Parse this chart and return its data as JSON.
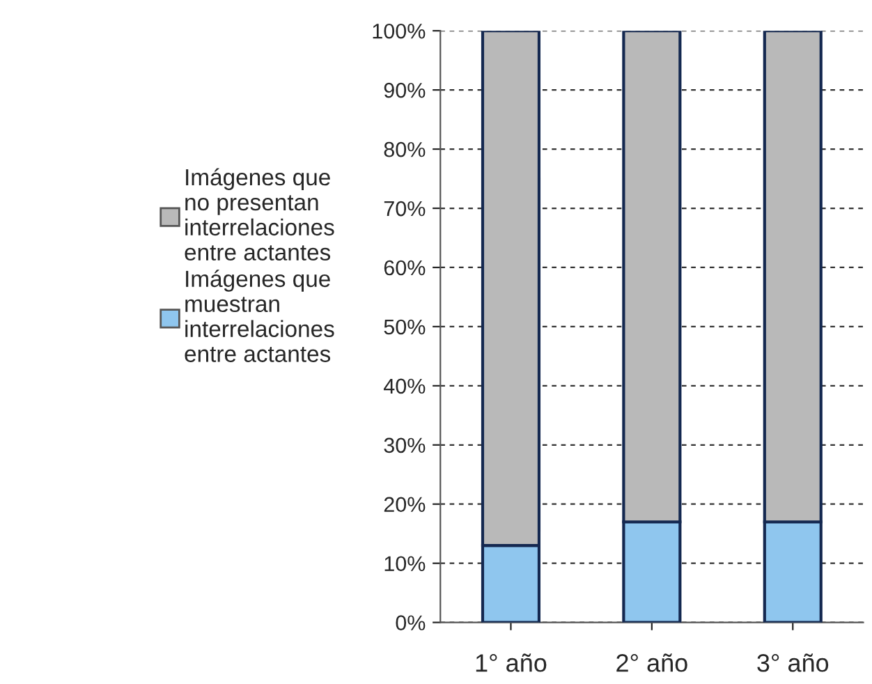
{
  "chart_data": {
    "type": "bar",
    "stacked": true,
    "categories": [
      "1° año",
      "2° año",
      "3° año"
    ],
    "series": [
      {
        "name": "Imágenes que\nmuestran\ninterrelaciones\nentre actantes",
        "color": "#8fc6ee",
        "values": [
          13,
          17,
          17
        ]
      },
      {
        "name": "Imágenes que\nno presentan\ninterrelaciones\nentre actantes",
        "color": "#b9b9b9",
        "values": [
          87,
          83,
          83
        ]
      }
    ],
    "ylim": [
      0,
      100
    ],
    "yticks": [
      {
        "value": 0,
        "label": "0%"
      },
      {
        "value": 10,
        "label": "10%"
      },
      {
        "value": 20,
        "label": "20%"
      },
      {
        "value": 30,
        "label": "30%"
      },
      {
        "value": 40,
        "label": "40%"
      },
      {
        "value": 50,
        "label": "50%"
      },
      {
        "value": 60,
        "label": "60%"
      },
      {
        "value": 70,
        "label": "70%"
      },
      {
        "value": 80,
        "label": "80%"
      },
      {
        "value": 90,
        "label": "90%"
      },
      {
        "value": 100,
        "label": "100%"
      }
    ],
    "grid": "y",
    "legend": "left"
  }
}
